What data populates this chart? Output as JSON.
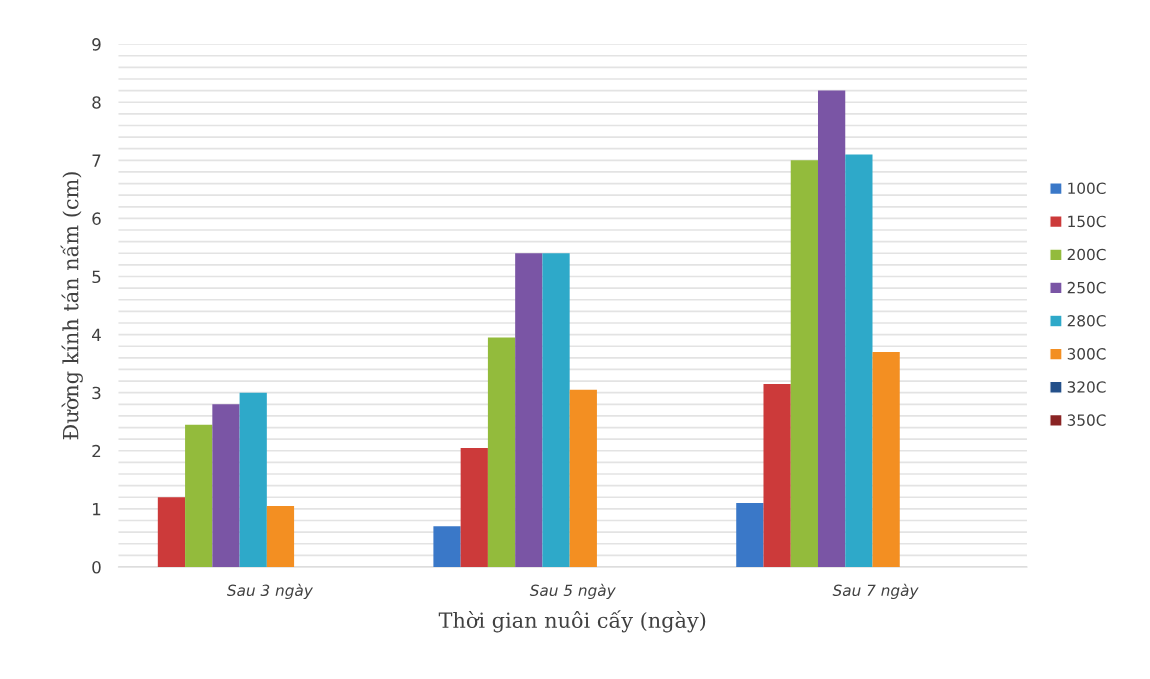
{
  "chart_data": {
    "type": "bar",
    "xlabel": "Thời gian nuôi cấy (ngày)",
    "ylabel": "Đường kính tán nấm (cm)",
    "categories": [
      "Sau 3 ngày",
      "Sau 5 ngày",
      "Sau 7 ngày"
    ],
    "series": [
      {
        "name": "100C",
        "color": "#3a78c8",
        "values": [
          0,
          0.7,
          1.1
        ]
      },
      {
        "name": "150C",
        "color": "#cc3a3a",
        "values": [
          1.2,
          2.05,
          3.15
        ]
      },
      {
        "name": "200C",
        "color": "#93bb3c",
        "values": [
          2.45,
          3.95,
          7.0
        ]
      },
      {
        "name": "250C",
        "color": "#7a55a5",
        "values": [
          2.8,
          5.4,
          8.2
        ]
      },
      {
        "name": "280C",
        "color": "#2ea9c9",
        "values": [
          3.0,
          5.4,
          7.1
        ]
      },
      {
        "name": "300C",
        "color": "#f38f22",
        "values": [
          1.05,
          3.05,
          3.7
        ]
      },
      {
        "name": "320C",
        "color": "#24508a",
        "values": [
          0,
          0,
          0
        ]
      },
      {
        "name": "350C",
        "color": "#8a2424",
        "values": [
          0,
          0,
          0
        ]
      }
    ],
    "ylim": [
      0,
      9
    ],
    "yticks": [
      0,
      {
        "value": 0.2,
        "label": null
      },
      {
        "value": 0.4,
        "label": null
      },
      {
        "value": 0.6,
        "label": null
      },
      {
        "value": 0.8,
        "label": null
      },
      1,
      {
        "value": 1.2,
        "label": null
      },
      {
        "value": 1.4,
        "label": null
      },
      {
        "value": 1.6,
        "label": null
      },
      {
        "value": 1.8,
        "label": null
      },
      2,
      {
        "value": 2.2,
        "label": null
      },
      {
        "value": 2.4,
        "label": null
      },
      {
        "value": 2.6,
        "label": null
      },
      {
        "value": 2.8,
        "label": null
      },
      3,
      {
        "value": 3.2,
        "label": null
      },
      {
        "value": 3.4,
        "label": null
      },
      {
        "value": 3.6,
        "label": null
      },
      {
        "value": 3.8,
        "label": null
      },
      4,
      {
        "value": 4.2,
        "label": null
      },
      {
        "value": 4.4,
        "label": null
      },
      {
        "value": 4.6,
        "label": null
      },
      {
        "value": 4.8,
        "label": null
      },
      5,
      {
        "value": 5.2,
        "label": null
      },
      {
        "value": 5.4,
        "label": null
      },
      {
        "value": 5.6,
        "label": null
      },
      {
        "value": 5.8,
        "label": null
      },
      6,
      {
        "value": 6.2,
        "label": null
      },
      {
        "value": 6.4,
        "label": null
      },
      {
        "value": 6.6,
        "label": null
      },
      {
        "value": 6.8,
        "label": null
      },
      7,
      {
        "value": 7.2,
        "label": null
      },
      {
        "value": 7.4,
        "label": null
      },
      {
        "value": 7.6,
        "label": null
      },
      {
        "value": 7.8,
        "label": null
      },
      8,
      {
        "value": 8.2,
        "label": null
      },
      {
        "value": 8.4,
        "label": null
      },
      {
        "value": 8.6,
        "label": null
      },
      {
        "value": 8.8,
        "label": null
      },
      9
    ],
    "grid": "y",
    "legend": "right"
  }
}
